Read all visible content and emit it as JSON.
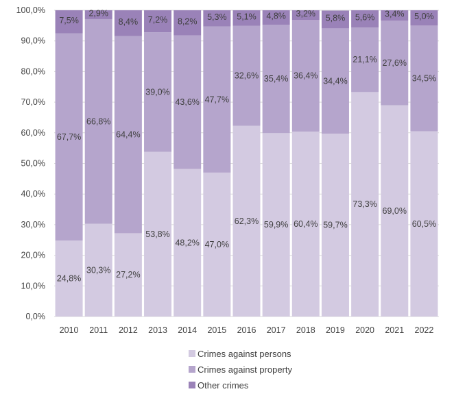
{
  "chart_data": {
    "type": "bar",
    "stacked": true,
    "percent": true,
    "categories": [
      "2010",
      "2011",
      "2012",
      "2013",
      "2014",
      "2015",
      "2016",
      "2017",
      "2018",
      "2019",
      "2020",
      "2021",
      "2022"
    ],
    "series": [
      {
        "name": "Crimes against persons",
        "color": "#d3cae1",
        "values": [
          24.8,
          30.3,
          27.2,
          53.8,
          48.2,
          47.0,
          62.3,
          59.9,
          60.4,
          59.7,
          73.3,
          69.0,
          60.5
        ],
        "labels": [
          "24,8%",
          "30,3%",
          "27,2%",
          "53,8%",
          "48,2%",
          "47,0%",
          "62,3%",
          "59,9%",
          "60,4%",
          "59,7%",
          "73,3%",
          "69,0%",
          "60,5%"
        ]
      },
      {
        "name": "Crimes against property",
        "color": "#b5a5cc",
        "values": [
          67.7,
          66.8,
          64.4,
          39.0,
          43.6,
          47.7,
          32.6,
          35.4,
          36.4,
          34.4,
          21.1,
          27.6,
          34.5
        ],
        "labels": [
          "67,7%",
          "66,8%",
          "64,4%",
          "39,0%",
          "43,6%",
          "47,7%",
          "32,6%",
          "35,4%",
          "36,4%",
          "34,4%",
          "21,1%",
          "27,6%",
          "34,5%"
        ]
      },
      {
        "name": "Other crimes",
        "color": "#9a82b8",
        "values": [
          7.5,
          2.9,
          8.4,
          7.2,
          8.2,
          5.3,
          5.1,
          4.8,
          3.2,
          5.8,
          5.6,
          3.4,
          5.0
        ],
        "labels": [
          "7,5%",
          "2,9%",
          "8,4%",
          "7,2%",
          "8,2%",
          "5,3%",
          "5,1%",
          "4,8%",
          "3,2%",
          "5,8%",
          "5,6%",
          "3,4%",
          "5,0%"
        ]
      }
    ],
    "yticks": [
      "0,0%",
      "10,0%",
      "20,0%",
      "30,0%",
      "40,0%",
      "50,0%",
      "60,0%",
      "70,0%",
      "80,0%",
      "90,0%",
      "100,0%"
    ],
    "ylim": [
      0,
      100
    ],
    "grid": true,
    "legend_position": "bottom",
    "title": "",
    "xlabel": "",
    "ylabel": ""
  }
}
